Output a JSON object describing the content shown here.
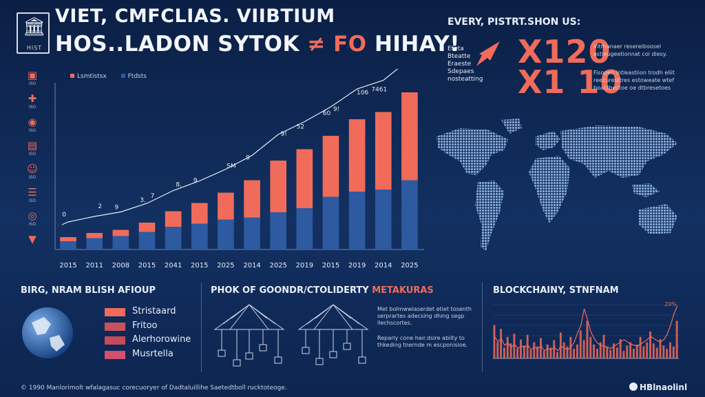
{
  "header": {
    "logo_text": "HIST",
    "title_line1": "VIET, CMFCLIAS. VIIBTIUM",
    "title_line2": "HOS..LADON SYTOK",
    "title_line2_accent": "≠ FO",
    "title_line2_tail": "HIHAY!"
  },
  "sidebar": {
    "items": [
      {
        "icon": "calendar-icon",
        "label": "ISO"
      },
      {
        "icon": "cross-icon",
        "label": "ISO"
      },
      {
        "icon": "eye-icon",
        "label": "ISO"
      },
      {
        "icon": "document-icon",
        "label": "ISO"
      },
      {
        "icon": "user-icon",
        "label": "ISO"
      },
      {
        "icon": "stack-icon",
        "label": "ISO"
      },
      {
        "icon": "badge-icon",
        "label": "ISO"
      },
      {
        "icon": "chevron-down-icon",
        "label": ""
      }
    ]
  },
  "colors": {
    "accent": "#f06b5a",
    "bar_top": "#f06b5a",
    "bar_bottom": "#2d5aa0",
    "background": "#0d2550"
  },
  "chart_data": [
    {
      "type": "bar",
      "legend": [
        {
          "name": "Lsmtistsx",
          "color": "#f06b5a"
        },
        {
          "name": "Ftdsts",
          "color": "#2d5aa0"
        }
      ],
      "categories": [
        "2015",
        "2011",
        "2008",
        "2015",
        "2041",
        "2015",
        "2025",
        "2014",
        "2025",
        "2019",
        "2015",
        "2019",
        "2014",
        "2025"
      ],
      "series": [
        {
          "name": "Lsmtistsx",
          "values": [
            4,
            5,
            6,
            9,
            15,
            20,
            26,
            36,
            50,
            57,
            59,
            70,
            75,
            85
          ]
        },
        {
          "name": "Ftdsts",
          "values": [
            8,
            11,
            13,
            17,
            22,
            25,
            29,
            31,
            36,
            40,
            51,
            56,
            58,
            67
          ]
        }
      ],
      "trend_labels": [
        "0",
        "2",
        "9",
        "7",
        "3.",
        "8.",
        "9",
        "SM",
        "9",
        "9!",
        "52",
        "9!",
        "60",
        "106",
        "7461",
        "1667"
      ],
      "ylim": [
        0,
        160
      ],
      "grid": false
    },
    {
      "type": "bar",
      "title": "BLOCKCHAINY, STNFNAM",
      "values": [
        62,
        30,
        55,
        20,
        40,
        28,
        46,
        18,
        35,
        24,
        44,
        16,
        30,
        22,
        38,
        14,
        26,
        20,
        34,
        12,
        48,
        30,
        22,
        40,
        18,
        26,
        52,
        34,
        70,
        40,
        26,
        18,
        30,
        44,
        22,
        16,
        28,
        20,
        36,
        14,
        24,
        30,
        18,
        26,
        40,
        22,
        30,
        50,
        28,
        20,
        36,
        24,
        18,
        30,
        22,
        70
      ],
      "line": [
        40,
        30,
        36,
        24,
        28,
        20,
        26,
        18,
        22,
        20,
        24,
        16,
        20,
        18,
        22,
        14,
        18,
        16,
        20,
        14,
        22,
        18,
        16,
        20,
        30,
        46,
        60,
        90,
        70,
        48,
        36,
        28,
        24,
        22,
        20,
        18,
        22,
        26,
        30,
        34,
        30,
        26,
        24,
        22,
        26,
        30,
        34,
        40,
        36,
        32,
        30,
        34,
        44,
        60,
        80,
        95
      ],
      "trend_label": "20%",
      "grid": true
    }
  ],
  "stats": {
    "title": "EVERY, PISTRT.SHON US:",
    "arrow_lines": [
      "Eteta",
      "Bteatte",
      "Eraeste",
      "Sdepaes",
      "nosteatting"
    ],
    "values": [
      {
        "value": "X120",
        "desc": "Vitrhanaer resereiboosel estieugeetionnat coi diesy."
      },
      {
        "value": "X1 10",
        "desc": "Fisopeo intleastiion trodh eliit reecuresttres estoweate wtef boactbectoe oe dtbresetoes"
      }
    ]
  },
  "bottom_left": {
    "title": "BIRG, NRAM BLISH AFIOUP",
    "items": [
      {
        "label": "Stristaard",
        "color": "#f06b5a"
      },
      {
        "label": "Fritoo",
        "color": "#c9525a"
      },
      {
        "label": "Alerhorowine",
        "color": "#c64b58"
      },
      {
        "label": "Musrtella",
        "color": "#d2506b"
      }
    ]
  },
  "bottom_mid": {
    "title": "PHOK OF GOONDR/CTOLIDERTY",
    "title_accent": "METAKURAS",
    "desc1": "Met bolmwwiaserdet etiet tosenth serprartes adecsing dhing segp llechscortes.",
    "desc2": "Reparly cone hair.dsire abiity to thkeding tnernde m escponisioe."
  },
  "footer": {
    "text": "© 1990 Manlorimolt wfalagasuc corecuoryer of Dadtaluillihe Saetedtboll rucktoteoge.",
    "brand": "HBlnaolinl"
  }
}
